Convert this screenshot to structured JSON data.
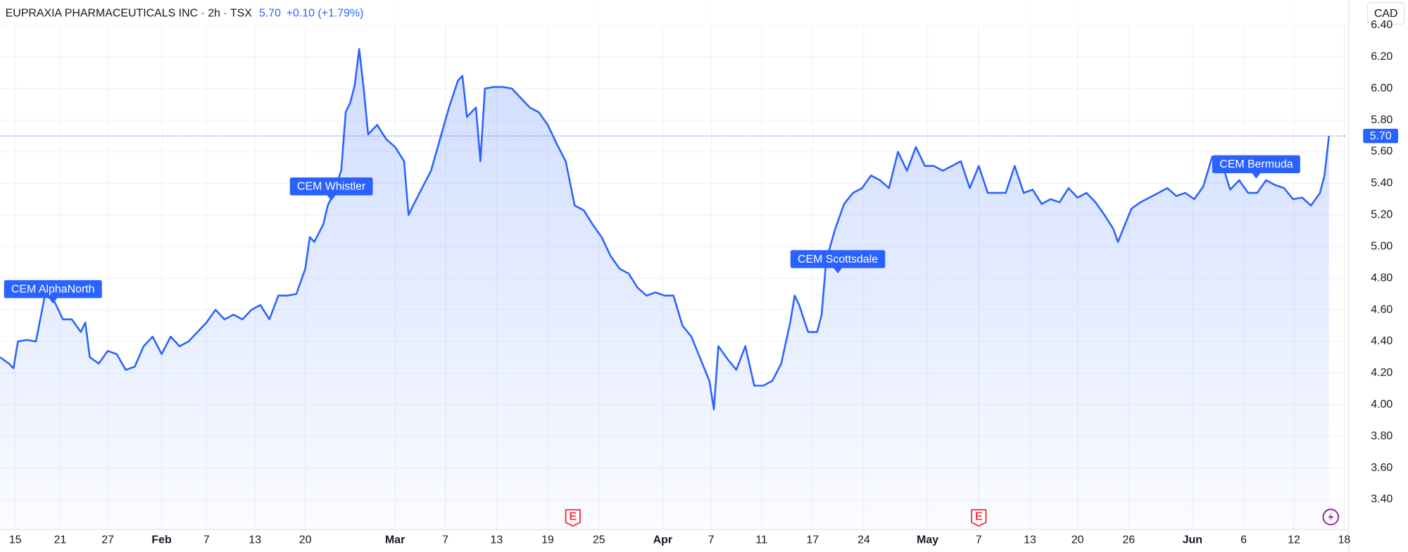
{
  "header": {
    "title": "EUPRAXIA PHARMACEUTICALS INC · 2h · TSX",
    "change": "+0.10 (+1.79%)",
    "currency": "CAD"
  },
  "chart_data": {
    "type": "area",
    "color": "#2962ff",
    "x": [
      0,
      2,
      3,
      4,
      6,
      8,
      10,
      12,
      14,
      16,
      18,
      19,
      20,
      22,
      24,
      26,
      28,
      30,
      32,
      34,
      36,
      38,
      40,
      42,
      44,
      46,
      48,
      50,
      52,
      54,
      56,
      58,
      60,
      62,
      64,
      66,
      68,
      69,
      70,
      72,
      73,
      74,
      76,
      77,
      78,
      79,
      80,
      81,
      82,
      84,
      86,
      88,
      90,
      91,
      92,
      94,
      96,
      98,
      100,
      102,
      103,
      104,
      106,
      107,
      108,
      110,
      112,
      114,
      116,
      118,
      120,
      122,
      124,
      126,
      128,
      130,
      132,
      134,
      136,
      138,
      140,
      142,
      144,
      146,
      148,
      150,
      152,
      154,
      156,
      158,
      159,
      160,
      162,
      164,
      166,
      168,
      170,
      172,
      174,
      176,
      177,
      178,
      180,
      182,
      183,
      184,
      186,
      188,
      190,
      192,
      194,
      196,
      198,
      200,
      202,
      204,
      206,
      208,
      210,
      212,
      214,
      216,
      218,
      220,
      222,
      224,
      226,
      228,
      230,
      232,
      234,
      236,
      238,
      240,
      242,
      244,
      246,
      248,
      249,
      250,
      252,
      254,
      256,
      258,
      260,
      262,
      264,
      266,
      268,
      270,
      272,
      274,
      276,
      278,
      280,
      282,
      284,
      286,
      288,
      290,
      292,
      294,
      295,
      296
    ],
    "values": [
      4.3,
      4.26,
      4.23,
      4.4,
      4.41,
      4.4,
      4.69,
      4.66,
      4.54,
      4.54,
      4.46,
      4.52,
      4.3,
      4.26,
      4.34,
      4.32,
      4.22,
      4.24,
      4.37,
      4.43,
      4.32,
      4.43,
      4.37,
      4.4,
      4.46,
      4.52,
      4.6,
      4.54,
      4.57,
      4.54,
      4.6,
      4.63,
      4.54,
      4.69,
      4.69,
      4.7,
      4.86,
      5.06,
      5.03,
      5.14,
      5.26,
      5.32,
      5.48,
      5.85,
      5.91,
      6.02,
      6.25,
      6.0,
      5.71,
      5.77,
      5.68,
      5.63,
      5.54,
      5.2,
      5.26,
      5.37,
      5.48,
      5.68,
      5.88,
      6.05,
      6.08,
      5.82,
      5.88,
      5.54,
      6.0,
      6.01,
      6.01,
      6.0,
      5.94,
      5.88,
      5.85,
      5.77,
      5.65,
      5.54,
      5.26,
      5.23,
      5.14,
      5.06,
      4.94,
      4.86,
      4.83,
      4.74,
      4.69,
      4.71,
      4.69,
      4.69,
      4.5,
      4.43,
      4.29,
      4.15,
      3.97,
      4.37,
      4.29,
      4.22,
      4.37,
      4.12,
      4.12,
      4.15,
      4.26,
      4.52,
      4.69,
      4.63,
      4.46,
      4.46,
      4.57,
      4.91,
      5.11,
      5.27,
      5.34,
      5.37,
      5.45,
      5.42,
      5.37,
      5.6,
      5.48,
      5.63,
      5.51,
      5.51,
      5.48,
      5.51,
      5.54,
      5.37,
      5.51,
      5.34,
      5.34,
      5.34,
      5.51,
      5.34,
      5.36,
      5.27,
      5.3,
      5.28,
      5.37,
      5.31,
      5.34,
      5.28,
      5.2,
      5.11,
      5.03,
      5.1,
      5.24,
      5.28,
      5.31,
      5.34,
      5.37,
      5.32,
      5.34,
      5.3,
      5.38,
      5.57,
      5.54,
      5.36,
      5.42,
      5.34,
      5.34,
      5.42,
      5.39,
      5.37,
      5.3,
      5.31,
      5.26,
      5.34,
      5.45,
      5.7
    ],
    "xlim": [
      0,
      300
    ],
    "xticks": [
      {
        "value": 3.4,
        "label": "15"
      },
      {
        "value": 13.4,
        "label": "21"
      },
      {
        "value": 24,
        "label": "27"
      },
      {
        "value": 36,
        "label": "Feb"
      },
      {
        "value": 46,
        "label": "7"
      },
      {
        "value": 56.8,
        "label": "13"
      },
      {
        "value": 68,
        "label": "20"
      },
      {
        "value": 88,
        "label": "Mar"
      },
      {
        "value": 99.2,
        "label": "7"
      },
      {
        "value": 110.6,
        "label": "13"
      },
      {
        "value": 122,
        "label": "19"
      },
      {
        "value": 133.4,
        "label": "25"
      },
      {
        "value": 147.6,
        "label": "Apr"
      },
      {
        "value": 158.4,
        "label": "7"
      },
      {
        "value": 169.6,
        "label": "11"
      },
      {
        "value": 181,
        "label": "17"
      },
      {
        "value": 192.4,
        "label": "24"
      },
      {
        "value": 206.6,
        "label": "May"
      },
      {
        "value": 218,
        "label": "7"
      },
      {
        "value": 229.4,
        "label": "13"
      },
      {
        "value": 240,
        "label": "20"
      },
      {
        "value": 251.4,
        "label": "26"
      },
      {
        "value": 265.6,
        "label": "Jun"
      },
      {
        "value": 277,
        "label": "6"
      },
      {
        "value": 288.2,
        "label": "12"
      },
      {
        "value": 299.4,
        "label": "18"
      }
    ],
    "ylim": [
      3.21,
      6.56
    ],
    "yticks": [
      {
        "value": 3.4,
        "label": "3.40"
      },
      {
        "value": 3.6,
        "label": "3.60"
      },
      {
        "value": 3.8,
        "label": "3.80"
      },
      {
        "value": 4.0,
        "label": "4.00"
      },
      {
        "value": 4.2,
        "label": "4.20"
      },
      {
        "value": 4.4,
        "label": "4.40"
      },
      {
        "value": 4.6,
        "label": "4.60"
      },
      {
        "value": 4.8,
        "label": "4.80"
      },
      {
        "value": 5.0,
        "label": "5.00"
      },
      {
        "value": 5.2,
        "label": "5.20"
      },
      {
        "value": 5.4,
        "label": "5.40"
      },
      {
        "value": 5.6,
        "label": "5.60"
      },
      {
        "value": 5.8,
        "label": "5.80"
      },
      {
        "value": 6.0,
        "label": "6.00"
      },
      {
        "value": 6.2,
        "label": "6.20"
      },
      {
        "value": 6.4,
        "label": "6.40"
      }
    ],
    "grid": true,
    "last_price": {
      "value": 5.7,
      "label": "5.70"
    },
    "annotations": [
      {
        "text": "CEM AlphaNorth",
        "x": 11.8,
        "price": 4.64
      },
      {
        "text": "CEM Whistler",
        "x": 73.8,
        "price": 5.29
      },
      {
        "text": "CEM Scottsdale",
        "x": 186.6,
        "price": 4.83
      },
      {
        "text": "CEM Bermuda",
        "x": 279.8,
        "price": 5.43
      }
    ],
    "event_markers": [
      {
        "x": 127.6,
        "label": "E"
      },
      {
        "x": 218,
        "label": "E"
      }
    ]
  }
}
